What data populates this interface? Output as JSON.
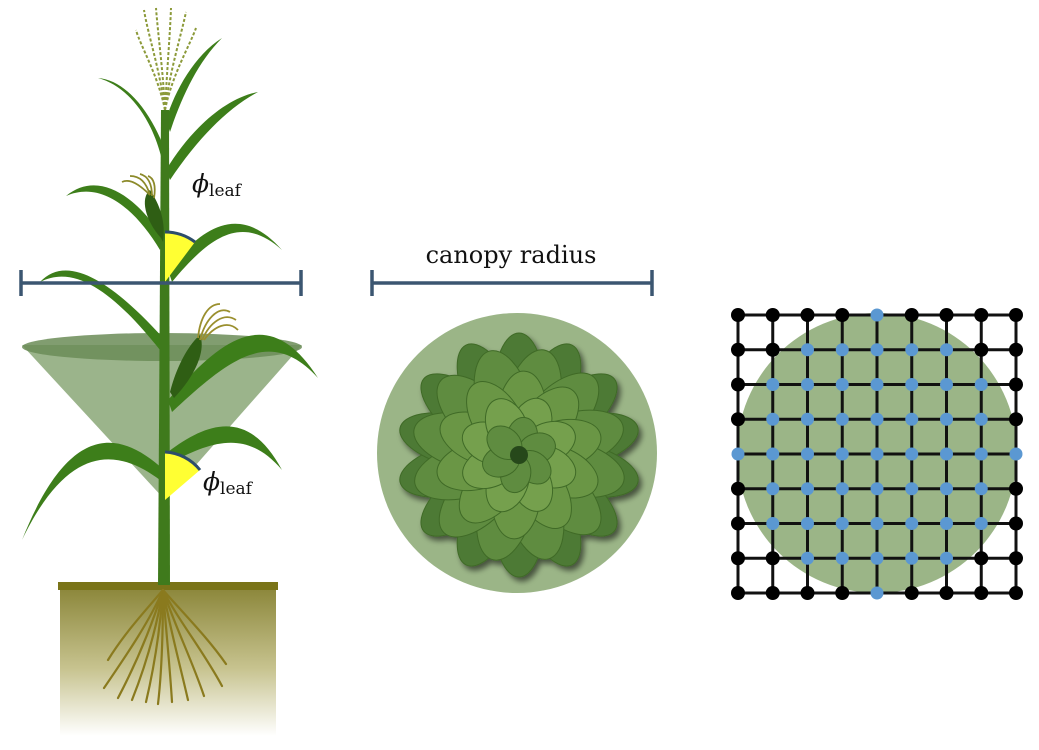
{
  "labels": {
    "phi_symbol": "ϕ",
    "phi_subscript": "leaf",
    "canopy_radius": "canopy radius"
  },
  "colors": {
    "stem": "#3f7a1c",
    "leaf": "#3d7e1a",
    "leaf_light": "#4e9426",
    "cone": "#7f9f6a",
    "cone_rim": "#6b8c57",
    "angle_fill": "#ffff33",
    "angle_arc": "#2d4d6b",
    "scale_bar": "#3b5671",
    "soil_top": "#7a7418",
    "roots": "#8a7a1e",
    "tassel": "#8c9a3a",
    "disc": "#9bb587",
    "rosette_leaf": "#6a9645",
    "grid_line": "#111111",
    "grid_node_outside": "#000000",
    "grid_node_inside": "#5b98d2"
  },
  "grid": {
    "rows": 9,
    "cols": 9,
    "inside_node_color_key": "grid_node_inside",
    "outside_node_color_key": "grid_node_outside"
  }
}
